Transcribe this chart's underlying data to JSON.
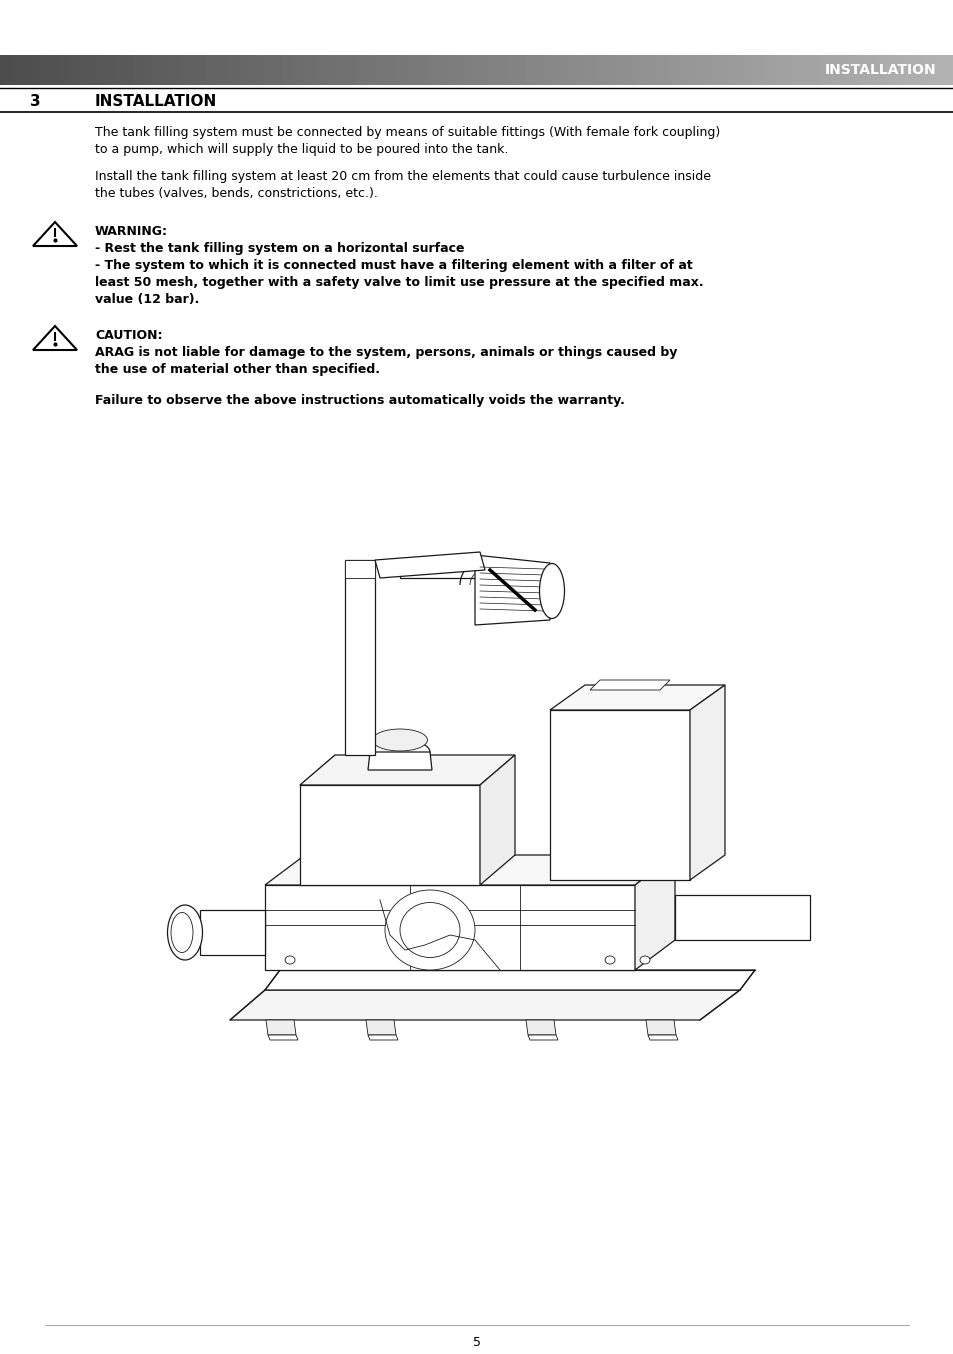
{
  "page_bg": "#ffffff",
  "header_text": "INSTALLATION",
  "header_text_color": "#ffffff",
  "section_number": "3",
  "section_title": "INSTALLATION",
  "body_text_color": "#000000",
  "body_font_size": 9.0,
  "bold_font_size": 9.0,
  "para1_line1": "The tank filling system must be connected by means of suitable fittings (With female fork coupling)",
  "para1_line2": "to a pump, which will supply the liquid to be poured into the tank.",
  "para2_line1": "Install the tank filling system at least 20 cm from the elements that could cause turbulence inside",
  "para2_line2": "the tubes (valves, bends, constrictions, etc.).",
  "warning_label": "WARNING:",
  "warning_text1": "- Rest the tank filling system on a horizontal surface",
  "warning_text2_line1": "- The system to which it is connected must have a filtering element with a filter of at",
  "warning_text2_line2": "least 50 mesh, together with a safety valve to limit use pressure at the specified max.",
  "warning_text2_line3": "value (12 bar).",
  "caution_label": "CAUTION:",
  "caution_text_line1": "ARAG is not liable for damage to the system, persons, animals or things caused by",
  "caution_text_line2": "the use of material other than specified.",
  "final_bold_line1": "Failure to observe the above instructions automatically voids the warranty.",
  "page_number": "5"
}
